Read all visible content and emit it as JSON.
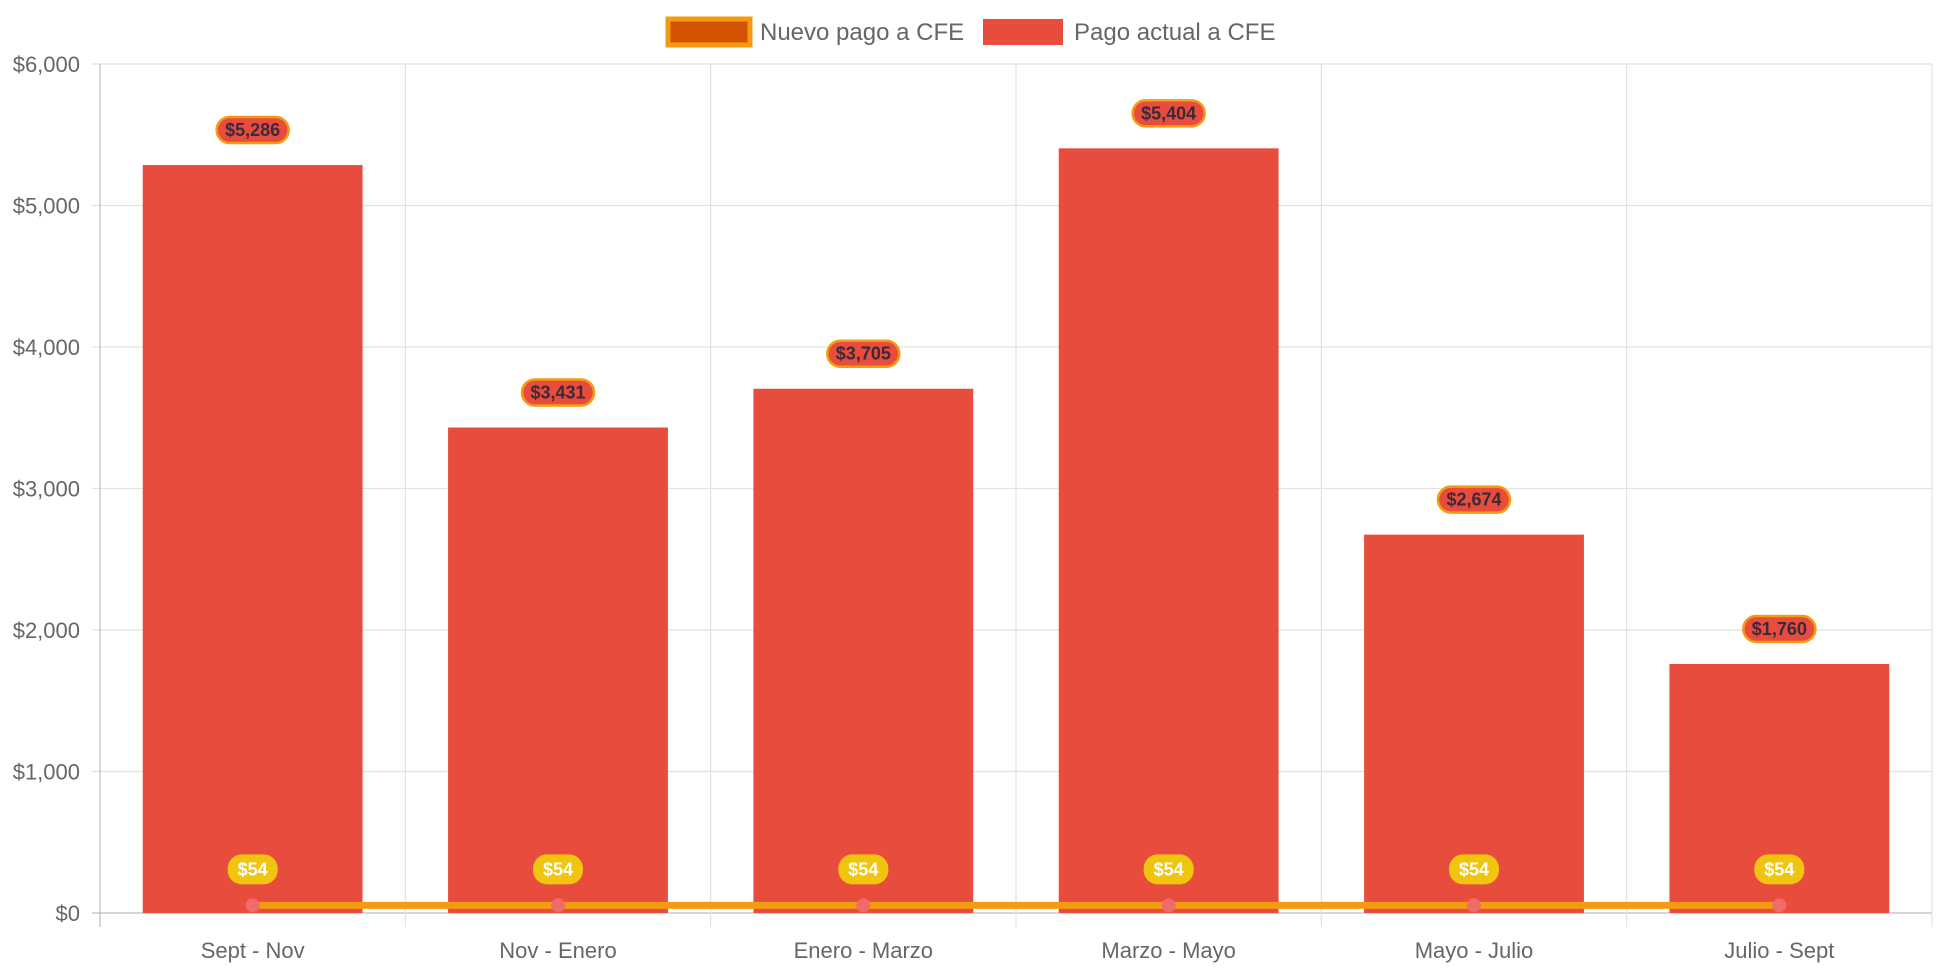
{
  "chart_data": {
    "type": "bar",
    "categories": [
      "Sept - Nov",
      "Nov - Enero",
      "Enero - Marzo",
      "Marzo - Mayo",
      "Mayo - Julio",
      "Julio - Sept"
    ],
    "series": [
      {
        "name": "Pago actual a CFE",
        "kind": "bar",
        "color": "#e74c3c",
        "values": [
          5286,
          3431,
          3705,
          5404,
          2674,
          1760
        ],
        "labels": [
          "$5,286",
          "$3,431",
          "$3,705",
          "$5,404",
          "$2,674",
          "$1,760"
        ]
      },
      {
        "name": "Nuevo pago a CFE",
        "kind": "line",
        "color": "#f39c12",
        "fill": "#d35400",
        "point_color": "#f06a6a",
        "values": [
          54,
          54,
          54,
          54,
          54,
          54
        ],
        "labels": [
          "$54",
          "$54",
          "$54",
          "$54",
          "$54",
          "$54"
        ]
      }
    ],
    "legend": [
      "Nuevo pago a CFE",
      "Pago actual a CFE"
    ],
    "legend_position": "top",
    "ylim": [
      0,
      6000
    ],
    "yticks": [
      0,
      1000,
      2000,
      3000,
      4000,
      5000,
      6000
    ],
    "ytick_labels": [
      "$0",
      "$1,000",
      "$2,000",
      "$3,000",
      "$4,000",
      "$5,000",
      "$6,000"
    ],
    "grid": true,
    "title": "",
    "xlabel": "",
    "ylabel": ""
  }
}
